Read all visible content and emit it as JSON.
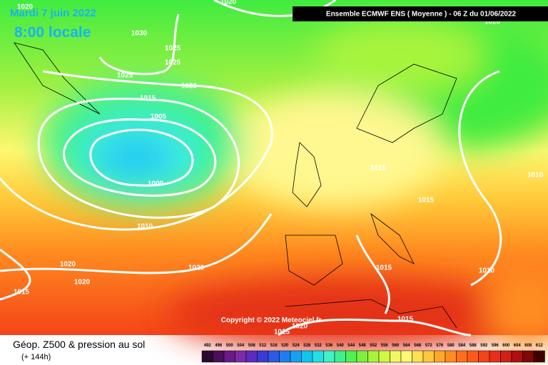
{
  "header": {
    "date": "Mardi 7 juin 2022",
    "time": "8:00 locale",
    "model": "Ensemble ECMWF ENS  ( Moyenne )  -  06 Z du 01/06/2022",
    "copyright": "Copyright © 2022 Meteociel.fr"
  },
  "isobar_labels": [
    "1020",
    "1020",
    "1030",
    "1025",
    "1025",
    "1025",
    "1020",
    "1015",
    "1005",
    "1000",
    "1010",
    "1020",
    "1020",
    "1020",
    "1015",
    "1015",
    "1015",
    "1010",
    "1010",
    "1015",
    "1015",
    "1015",
    "1020",
    "1020"
  ],
  "footer": {
    "title": "Géop. Z500 & pression au sol",
    "subtitle": "(+ 144h)"
  },
  "scale": {
    "labels": [
      492,
      496,
      500,
      504,
      508,
      512,
      516,
      520,
      524,
      528,
      532,
      536,
      540,
      544,
      548,
      552,
      556,
      560,
      564,
      568,
      572,
      576,
      580,
      584,
      588,
      592,
      596,
      600,
      604,
      608,
      612
    ],
    "colors": [
      "#2a0a2e",
      "#4b0f5a",
      "#6b1a86",
      "#7d2aa8",
      "#5a2cc0",
      "#3a3ad6",
      "#2c5ae6",
      "#1e7ef0",
      "#16a2f2",
      "#10c6f0",
      "#20e0e8",
      "#40f0c8",
      "#3cf08c",
      "#50f050",
      "#7cf03c",
      "#a8f43c",
      "#d0f840",
      "#f0f860",
      "#fff870",
      "#ffe050",
      "#ffc838",
      "#ffa828",
      "#ff8c20",
      "#ff7018",
      "#ff5a18",
      "#f44418",
      "#e43018",
      "#d02018",
      "#b01010",
      "#800808",
      "#400000"
    ]
  }
}
